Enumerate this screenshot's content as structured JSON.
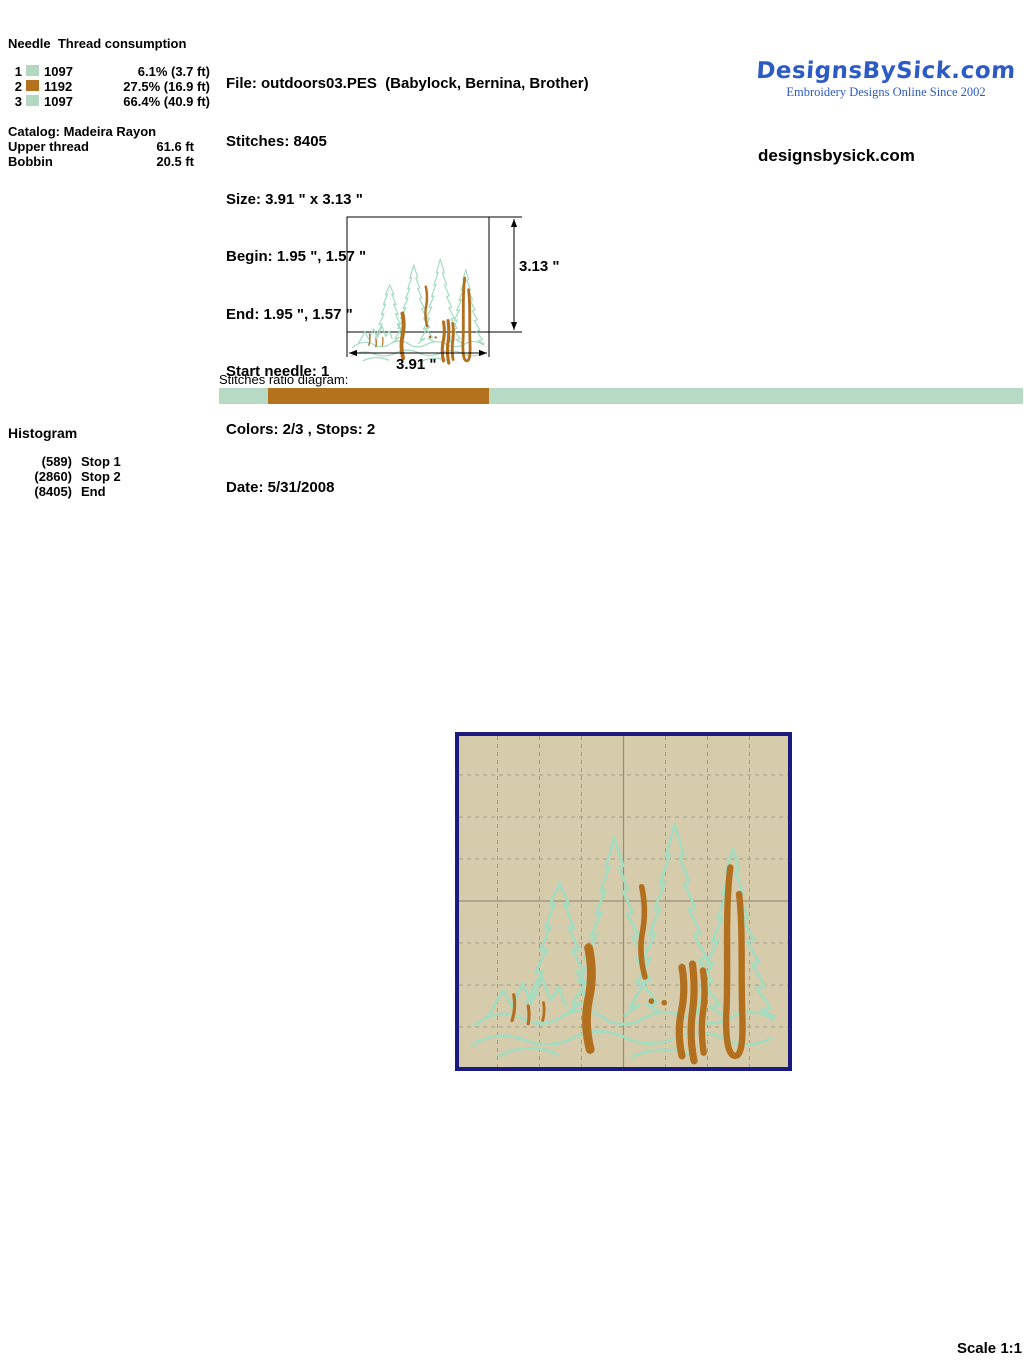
{
  "thread_table": {
    "header": "Needle  Thread consumption",
    "rows": [
      {
        "needle": "1",
        "color": "#b2d8c2",
        "code": "1097",
        "consumption": "6.1% (3.7 ft)"
      },
      {
        "needle": "2",
        "color": "#b5721e",
        "code": "1192",
        "consumption": "27.5% (16.9 ft)"
      },
      {
        "needle": "3",
        "color": "#b2d8c2",
        "code": "1097",
        "consumption": "66.4% (40.9 ft)"
      }
    ],
    "catalog": "Catalog: Madeira Rayon",
    "upper_thread_label": "Upper thread",
    "upper_thread_value": "61.6 ft",
    "bobbin_label": "Bobbin",
    "bobbin_value": "20.5 ft"
  },
  "file_info": {
    "lines": [
      "File: outdoors03.PES  (Babylock, Bernina, Brother)",
      "Stitches: 8405",
      "Size: 3.91 \" x 3.13 \"",
      "Begin: 1.95 \", 1.57 \"",
      "End: 1.95 \", 1.57 \"",
      "Start needle: 1",
      "Colors: 2/3 , Stops: 2",
      "Date: 5/31/2008"
    ]
  },
  "branding": {
    "logo_text": "DesignsBySick.com",
    "logo_tagline": "Embroidery Designs Online Since 2002",
    "logo_color": "#2d5bc6",
    "website": "designsbysick.com"
  },
  "dimensions": {
    "height_label": "3.13 \"",
    "width_label": "3.91 \""
  },
  "ratio_diagram": {
    "label": "Stitches ratio diagram:",
    "segments": [
      {
        "color": "#b6dac4",
        "percent": 6.1
      },
      {
        "color": "#b5721e",
        "percent": 27.5
      },
      {
        "color": "#b6dac4",
        "percent": 66.4
      }
    ]
  },
  "histogram": {
    "title": "Histogram",
    "rows": [
      {
        "count": "(589)",
        "label": "Stop 1"
      },
      {
        "count": "(2860)",
        "label": "Stop 2"
      },
      {
        "count": "(8405)",
        "label": "End"
      }
    ]
  },
  "preview": {
    "background": "#d6cbaa",
    "border_color": "#1b1a80",
    "design_green": "#a3dcc0",
    "design_brown": "#b2701f"
  },
  "scale_label": "Scale 1:1"
}
